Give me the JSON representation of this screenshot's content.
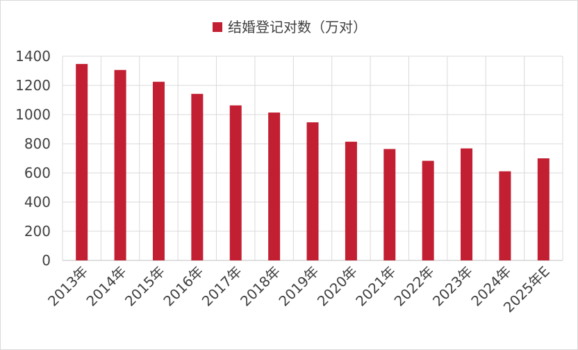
{
  "chart_data": {
    "type": "bar",
    "categories": [
      "2013年",
      "2014年",
      "2015年",
      "2016年",
      "2017年",
      "2018年",
      "2019年",
      "2020年",
      "2021年",
      "2022年",
      "2023年",
      "2024年",
      "2025年E"
    ],
    "series": [
      {
        "name": "结婚登记对数（万对）",
        "values": [
          1347,
          1306,
          1225,
          1142,
          1063,
          1014,
          947,
          814,
          764,
          683,
          768,
          611,
          700
        ],
        "color": "#c21f32"
      }
    ],
    "yticks": [
      0,
      200,
      400,
      600,
      800,
      1000,
      1200,
      1400
    ],
    "ylim": [
      0,
      1400
    ],
    "grid": true,
    "legend_position": "top-center"
  }
}
